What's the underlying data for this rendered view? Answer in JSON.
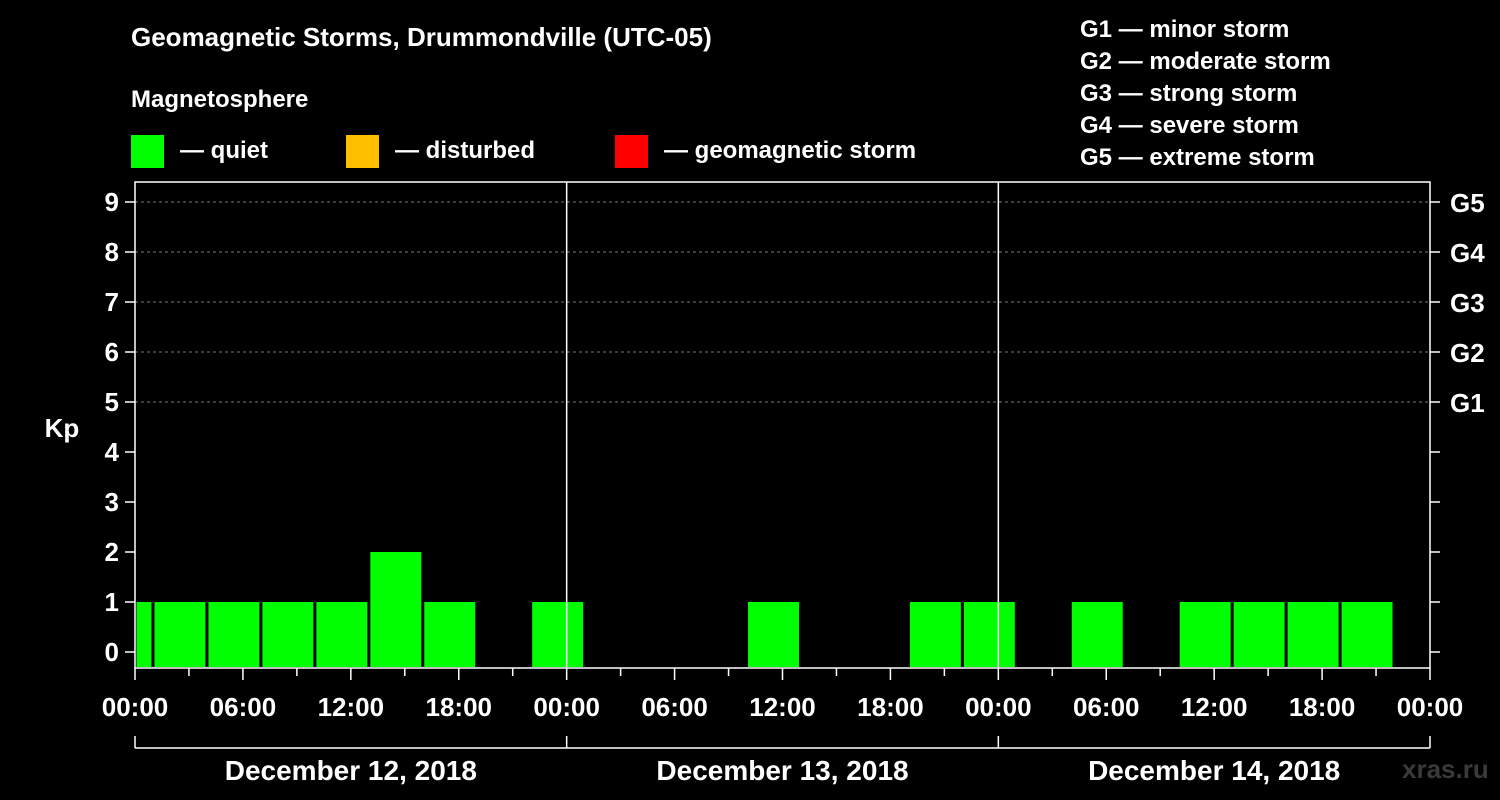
{
  "title": "Geomagnetic Storms, Drummondville (UTC-05)",
  "magnetosphere_label": "Magnetosphere",
  "legend": [
    {
      "label": "— quiet",
      "color": "#00ff00"
    },
    {
      "label": "— disturbed",
      "color": "#ffbf00"
    },
    {
      "label": "— geomagnetic storm",
      "color": "#ff0000"
    }
  ],
  "g_scale": [
    {
      "code": "G1",
      "label": "G1 — minor storm"
    },
    {
      "code": "G2",
      "label": "G2 — moderate storm"
    },
    {
      "code": "G3",
      "label": "G3 — strong storm"
    },
    {
      "code": "G4",
      "label": "G4 — severe storm"
    },
    {
      "code": "G5",
      "label": "G5 — extreme storm"
    }
  ],
  "watermark": "xras.ru",
  "chart_data": {
    "type": "bar",
    "title": "Geomagnetic Storms, Drummondville (UTC-05)",
    "ylabel": "Kp",
    "ylim": [
      0,
      9
    ],
    "yticks": [
      "0",
      "1",
      "2",
      "3",
      "4",
      "5",
      "6",
      "7",
      "8",
      "9"
    ],
    "right_axis": [
      {
        "kp": 5,
        "label": "G1"
      },
      {
        "kp": 6,
        "label": "G2"
      },
      {
        "kp": 7,
        "label": "G3"
      },
      {
        "kp": 8,
        "label": "G4"
      },
      {
        "kp": 9,
        "label": "G5"
      }
    ],
    "xlim_hours": [
      -0.5,
      71.5
    ],
    "xticks": [
      {
        "hour": -0.5,
        "label": "00:00"
      },
      {
        "hour": 5.5,
        "label": "06:00"
      },
      {
        "hour": 11.5,
        "label": "12:00"
      },
      {
        "hour": 17.5,
        "label": "18:00"
      },
      {
        "hour": 23.5,
        "label": "00:00"
      },
      {
        "hour": 29.5,
        "label": "06:00"
      },
      {
        "hour": 35.5,
        "label": "12:00"
      },
      {
        "hour": 41.5,
        "label": "18:00"
      },
      {
        "hour": 47.5,
        "label": "00:00"
      },
      {
        "hour": 53.5,
        "label": "06:00"
      },
      {
        "hour": 59.5,
        "label": "12:00"
      },
      {
        "hour": 65.5,
        "label": "18:00"
      },
      {
        "hour": 71.5,
        "label": "00:00"
      }
    ],
    "days": [
      {
        "label": "December 12, 2018",
        "start": -0.5,
        "end": 23.5
      },
      {
        "label": "December 13, 2018",
        "start": 23.5,
        "end": 47.5
      },
      {
        "label": "December 14, 2018",
        "start": 47.5,
        "end": 71.5
      }
    ],
    "bars": [
      {
        "start": -0.5,
        "end": 0.5,
        "kp": 1,
        "status": "quiet"
      },
      {
        "start": 0.5,
        "end": 3.5,
        "kp": 1,
        "status": "quiet"
      },
      {
        "start": 3.5,
        "end": 6.5,
        "kp": 1,
        "status": "quiet"
      },
      {
        "start": 6.5,
        "end": 9.5,
        "kp": 1,
        "status": "quiet"
      },
      {
        "start": 9.5,
        "end": 12.5,
        "kp": 1,
        "status": "quiet"
      },
      {
        "start": 12.5,
        "end": 15.5,
        "kp": 2,
        "status": "quiet"
      },
      {
        "start": 15.5,
        "end": 18.5,
        "kp": 1,
        "status": "quiet"
      },
      {
        "start": 21.5,
        "end": 24.5,
        "kp": 1,
        "status": "quiet"
      },
      {
        "start": 33.5,
        "end": 36.5,
        "kp": 1,
        "status": "quiet"
      },
      {
        "start": 42.5,
        "end": 45.5,
        "kp": 1,
        "status": "quiet"
      },
      {
        "start": 45.5,
        "end": 48.5,
        "kp": 1,
        "status": "quiet"
      },
      {
        "start": 51.5,
        "end": 54.5,
        "kp": 1,
        "status": "quiet"
      },
      {
        "start": 57.5,
        "end": 60.5,
        "kp": 1,
        "status": "quiet"
      },
      {
        "start": 60.5,
        "end": 63.5,
        "kp": 1,
        "status": "quiet"
      },
      {
        "start": 63.5,
        "end": 66.5,
        "kp": 1,
        "status": "quiet"
      },
      {
        "start": 66.5,
        "end": 69.5,
        "kp": 1,
        "status": "quiet"
      }
    ]
  }
}
